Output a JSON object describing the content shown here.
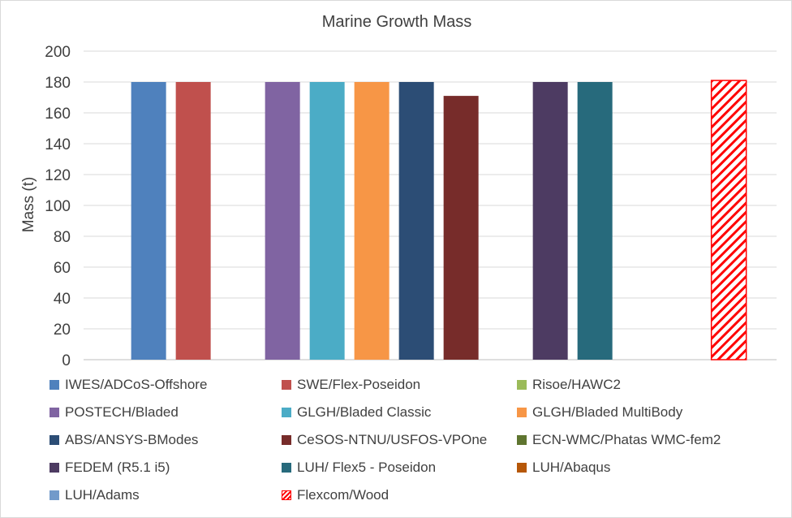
{
  "chart_data": {
    "type": "bar",
    "title": "Marine Growth Mass",
    "ylabel": "Mass (t)",
    "xlabel": "",
    "ylim": [
      0,
      200
    ],
    "yticks": [
      0,
      20,
      40,
      60,
      80,
      100,
      120,
      140,
      160,
      180,
      200
    ],
    "grid": true,
    "legend_position": "bottom",
    "series": [
      {
        "name": "IWES/ADCoS-Offshore",
        "value": 180,
        "color": "#4f81bd"
      },
      {
        "name": "SWE/Flex-Poseidon",
        "value": 180,
        "color": "#c0504d"
      },
      {
        "name": "Risoe/HAWC2",
        "value": null,
        "color": "#9bbb59"
      },
      {
        "name": "POSTECH/Bladed",
        "value": 180,
        "color": "#8064a2"
      },
      {
        "name": "GLGH/Bladed Classic",
        "value": 180,
        "color": "#4bacc6"
      },
      {
        "name": "GLGH/Bladed MultiBody",
        "value": 180,
        "color": "#f79646"
      },
      {
        "name": "ABS/ANSYS-BModes",
        "value": 180,
        "color": "#2c4d75"
      },
      {
        "name": "CeSOS-NTNU/USFOS-VPOne",
        "value": 171,
        "color": "#772c2a"
      },
      {
        "name": "ECN-WMC/Phatas WMC-fem2",
        "value": null,
        "color": "#5f7530"
      },
      {
        "name": "FEDEM (R5.1 i5)",
        "value": 180,
        "color": "#4d3b62"
      },
      {
        "name": "LUH/ Flex5 - Poseidon",
        "value": 180,
        "color": "#276a7c"
      },
      {
        "name": "LUH/Abaqus",
        "value": null,
        "color": "#b65708"
      },
      {
        "name": "LUH/Adams",
        "value": null,
        "color": "#729aca"
      },
      {
        "name": "Flexcom/Wood",
        "value": 181,
        "color": "#ff0000",
        "pattern": "hatched"
      }
    ]
  }
}
